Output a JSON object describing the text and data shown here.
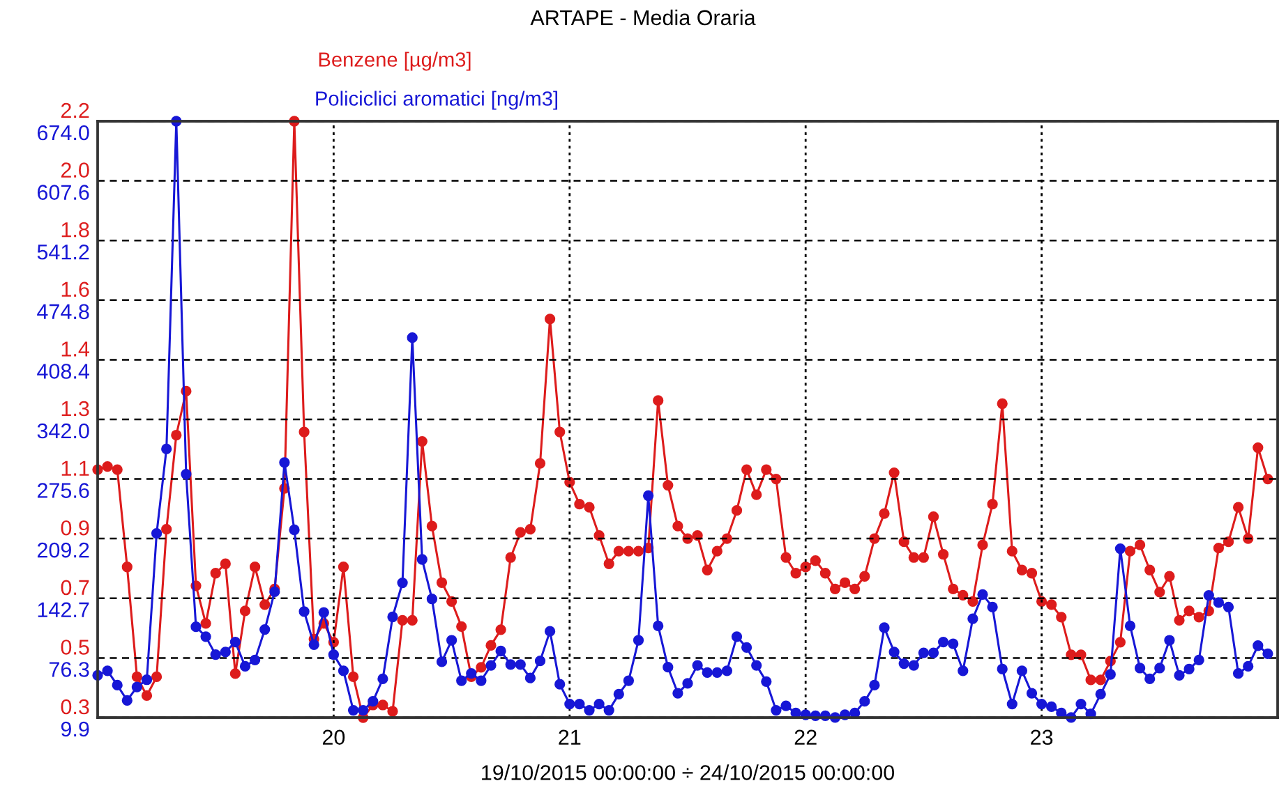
{
  "chart_data": {
    "type": "line",
    "title": "ARTAPE - Media Oraria",
    "xlabel": "19/10/2015 00:00:00 ÷ 24/10/2015 00:00:00",
    "x": [
      "2015-10-19T00:00",
      "2015-10-19T01:00",
      "2015-10-19T02:00",
      "2015-10-19T03:00",
      "2015-10-19T04:00",
      "2015-10-19T05:00",
      "2015-10-19T06:00",
      "2015-10-19T07:00",
      "2015-10-19T08:00",
      "2015-10-19T09:00",
      "2015-10-19T10:00",
      "2015-10-19T11:00",
      "2015-10-19T12:00",
      "2015-10-19T13:00",
      "2015-10-19T14:00",
      "2015-10-19T15:00",
      "2015-10-19T16:00",
      "2015-10-19T17:00",
      "2015-10-19T18:00",
      "2015-10-19T19:00",
      "2015-10-19T20:00",
      "2015-10-19T21:00",
      "2015-10-19T22:00",
      "2015-10-19T23:00",
      "2015-10-20T00:00",
      "2015-10-20T01:00",
      "2015-10-20T02:00",
      "2015-10-20T03:00",
      "2015-10-20T04:00",
      "2015-10-20T05:00",
      "2015-10-20T06:00",
      "2015-10-20T07:00",
      "2015-10-20T08:00",
      "2015-10-20T09:00",
      "2015-10-20T10:00",
      "2015-10-20T11:00",
      "2015-10-20T12:00",
      "2015-10-20T13:00",
      "2015-10-20T14:00",
      "2015-10-20T15:00",
      "2015-10-20T16:00",
      "2015-10-20T17:00",
      "2015-10-20T18:00",
      "2015-10-20T19:00",
      "2015-10-20T20:00",
      "2015-10-20T21:00",
      "2015-10-20T22:00",
      "2015-10-20T23:00",
      "2015-10-21T00:00",
      "2015-10-21T01:00",
      "2015-10-21T02:00",
      "2015-10-21T03:00",
      "2015-10-21T04:00",
      "2015-10-21T05:00",
      "2015-10-21T06:00",
      "2015-10-21T07:00",
      "2015-10-21T08:00",
      "2015-10-21T09:00",
      "2015-10-21T10:00",
      "2015-10-21T11:00",
      "2015-10-21T12:00",
      "2015-10-21T13:00",
      "2015-10-21T14:00",
      "2015-10-21T15:00",
      "2015-10-21T16:00",
      "2015-10-21T17:00",
      "2015-10-21T18:00",
      "2015-10-21T19:00",
      "2015-10-21T20:00",
      "2015-10-21T21:00",
      "2015-10-21T22:00",
      "2015-10-21T23:00",
      "2015-10-22T00:00",
      "2015-10-22T01:00",
      "2015-10-22T02:00",
      "2015-10-22T03:00",
      "2015-10-22T04:00",
      "2015-10-22T05:00",
      "2015-10-22T06:00",
      "2015-10-22T07:00",
      "2015-10-22T08:00",
      "2015-10-22T09:00",
      "2015-10-22T10:00",
      "2015-10-22T11:00",
      "2015-10-22T12:00",
      "2015-10-22T13:00",
      "2015-10-22T14:00",
      "2015-10-22T15:00",
      "2015-10-22T16:00",
      "2015-10-22T17:00",
      "2015-10-22T18:00",
      "2015-10-22T19:00",
      "2015-10-22T20:00",
      "2015-10-22T21:00",
      "2015-10-22T22:00",
      "2015-10-22T23:00",
      "2015-10-23T00:00",
      "2015-10-23T01:00",
      "2015-10-23T02:00",
      "2015-10-23T03:00",
      "2015-10-23T04:00",
      "2015-10-23T05:00",
      "2015-10-23T06:00",
      "2015-10-23T07:00",
      "2015-10-23T08:00",
      "2015-10-23T09:00",
      "2015-10-23T10:00",
      "2015-10-23T11:00",
      "2015-10-23T12:00",
      "2015-10-23T13:00",
      "2015-10-23T14:00",
      "2015-10-23T15:00",
      "2015-10-23T16:00",
      "2015-10-23T17:00",
      "2015-10-23T18:00",
      "2015-10-23T19:00",
      "2015-10-23T20:00",
      "2015-10-23T21:00",
      "2015-10-23T22:00",
      "2015-10-23T23:00"
    ],
    "series": [
      {
        "name": "Benzene [µg/m3]",
        "color": "#dd1c1c",
        "axis": "y2",
        "values": [
          1.09,
          1.1,
          1.09,
          0.78,
          0.43,
          0.37,
          0.43,
          0.9,
          1.2,
          1.34,
          0.72,
          0.6,
          0.76,
          0.79,
          0.44,
          0.64,
          0.78,
          0.66,
          0.71,
          1.03,
          2.2,
          1.21,
          0.55,
          0.6,
          0.54,
          0.78,
          0.43,
          0.3,
          0.34,
          0.34,
          0.32,
          0.61,
          0.61,
          1.18,
          0.91,
          0.73,
          0.67,
          0.59,
          0.43,
          0.46,
          0.53,
          0.58,
          0.81,
          0.89,
          0.9,
          1.11,
          1.57,
          1.21,
          1.05,
          0.98,
          0.97,
          0.88,
          0.79,
          0.83,
          0.83,
          0.83,
          0.84,
          1.31,
          1.04,
          0.91,
          0.87,
          0.88,
          0.77,
          0.83,
          0.87,
          0.96,
          1.09,
          1.01,
          1.09,
          1.06,
          0.81,
          0.76,
          0.78,
          0.8,
          0.76,
          0.71,
          0.73,
          0.71,
          0.75,
          0.87,
          0.95,
          1.08,
          0.86,
          0.81,
          0.81,
          0.94,
          0.82,
          0.71,
          0.69,
          0.67,
          0.85,
          0.98,
          1.3,
          0.83,
          0.77,
          0.76,
          0.67,
          0.66,
          0.62,
          0.5,
          0.5,
          0.42,
          0.42,
          0.48,
          0.54,
          0.83,
          0.85,
          0.77,
          0.7,
          0.75,
          0.61,
          0.64,
          0.62,
          0.64,
          0.84,
          0.86,
          0.97,
          0.87,
          1.16,
          1.06
        ]
      },
      {
        "name": "Policiclici aromatici [ng/m3]",
        "color": "#1717d6",
        "values": [
          57,
          62,
          46,
          29,
          44,
          52,
          215,
          309,
          674,
          281,
          111,
          100,
          80,
          83,
          94,
          67,
          74,
          108,
          150,
          294,
          219,
          128,
          91,
          127,
          80,
          62,
          18,
          18,
          28,
          53,
          122,
          160,
          433,
          186,
          142,
          72,
          96,
          51,
          59,
          51,
          68,
          84,
          69,
          69,
          54,
          73,
          106,
          47,
          25,
          25,
          18,
          25,
          18,
          36,
          51,
          96,
          257,
          112,
          66,
          37,
          48,
          68,
          60,
          60,
          62,
          100,
          88,
          68,
          50,
          18,
          23,
          15,
          13,
          12,
          12,
          10,
          13,
          15,
          28,
          46,
          110,
          83,
          70,
          68,
          82,
          82,
          94,
          92,
          62,
          120,
          147,
          133,
          64,
          25,
          62,
          37,
          25,
          22,
          15,
          10,
          25,
          14,
          36,
          58,
          198,
          112,
          65,
          53,
          65,
          96,
          57,
          64,
          74,
          146,
          138,
          133,
          59,
          67,
          90,
          81
        ]
      }
    ],
    "xlim": [
      "2015-10-19T00:00",
      "2015-10-24T00:00"
    ],
    "xticks": [
      {
        "value": "2015-10-20",
        "label": "20"
      },
      {
        "value": "2015-10-21",
        "label": "21"
      },
      {
        "value": "2015-10-22",
        "label": "22"
      },
      {
        "value": "2015-10-23",
        "label": "23"
      }
    ],
    "ylim": [
      9.9,
      674.0
    ],
    "yticks": [
      9.9,
      {
        "value": 76.31,
        "label": "76.3"
      },
      {
        "value": 142.72,
        "label": "142.7"
      },
      {
        "value": 209.2,
        "label": "209.2"
      },
      {
        "value": 275.6,
        "label": "275.6"
      },
      {
        "value": 341.95,
        "label": "342.0"
      },
      {
        "value": 408.36,
        "label": "408.4"
      },
      {
        "value": 474.77,
        "label": "474.8"
      },
      {
        "value": 541.18,
        "label": "541.2"
      },
      {
        "value": 607.59,
        "label": "607.6"
      },
      {
        "value": 674.0,
        "label": "674.0"
      }
    ],
    "y2lim": [
      0.3,
      2.2
    ],
    "y2ticks": [
      0.3,
      {
        "value": 0.49,
        "label": "0.5"
      },
      {
        "value": 0.68,
        "label": "0.7"
      },
      {
        "value": 0.87,
        "label": "0.9"
      },
      {
        "value": 1.06,
        "label": "1.1"
      },
      {
        "value": 1.25,
        "label": "1.3"
      },
      {
        "value": 1.44,
        "label": "1.4"
      },
      {
        "value": 1.63,
        "label": "1.6"
      },
      {
        "value": 1.82,
        "label": "1.8"
      },
      {
        "value": 2.01,
        "label": "2.0"
      },
      2.2
    ],
    "grid": true,
    "marker": "circle",
    "line_style": "solid"
  }
}
